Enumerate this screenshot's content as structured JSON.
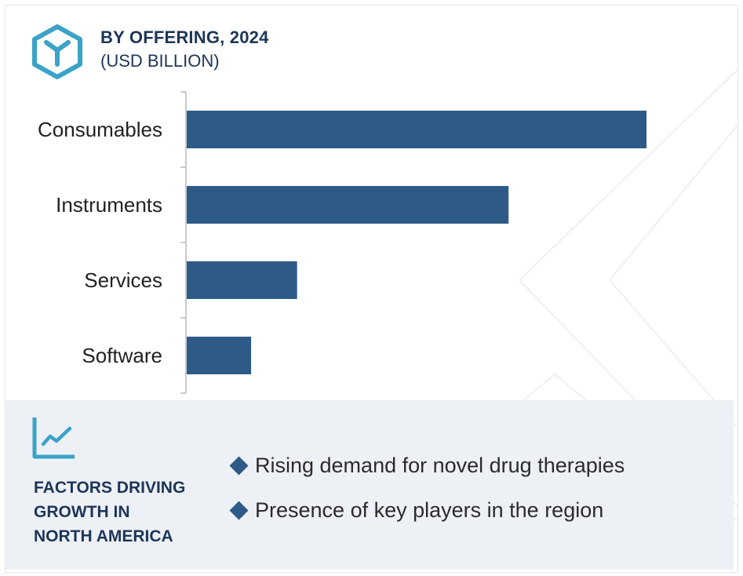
{
  "header": {
    "title": "BY OFFERING, 2024",
    "subtitle": "(USD BILLION)"
  },
  "chart_data": {
    "type": "bar",
    "orientation": "horizontal",
    "categories": [
      "Consumables",
      "Instruments",
      "Services",
      "Software"
    ],
    "values": [
      100,
      70,
      24,
      14
    ],
    "bar_color": "#2e5a88",
    "xlabel": "",
    "ylabel": "",
    "grid": false,
    "legend": "none"
  },
  "footer": {
    "icon": "trend-chart-icon",
    "title_lines": [
      "FACTORS DRIVING",
      "GROWTH IN",
      "NORTH AMERICA"
    ],
    "factors": [
      "Rising demand for novel drug therapies",
      "Presence of key players in the region"
    ]
  },
  "colors": {
    "accent": "#3aa3c7",
    "navy": "#1d3557",
    "bar": "#2e5a88",
    "panel": "#edf1f6"
  }
}
